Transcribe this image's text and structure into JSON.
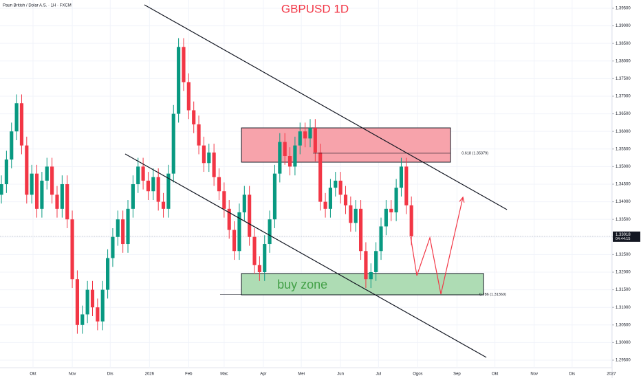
{
  "chart_data": {
    "type": "candlestick",
    "header": "Paun British / Dolar A.S. · 1H · FXCM",
    "title": "GBPUSD 1D",
    "title_color": "#f23645",
    "up_color": "#089981",
    "down_color": "#f23645",
    "grid": true,
    "xlim": [
      3.9,
      487.6
    ],
    "ylim": [
      1.29285,
      1.39734
    ],
    "xticks": [
      {
        "value": 30,
        "label": "Okt"
      },
      {
        "value": 61,
        "label": "Nov"
      },
      {
        "value": 91,
        "label": "Dis"
      },
      {
        "value": 122,
        "label": "2026"
      },
      {
        "value": 153,
        "label": "Feb"
      },
      {
        "value": 181,
        "label": "Mac"
      },
      {
        "value": 212,
        "label": "Apr"
      },
      {
        "value": 242,
        "label": "Mei"
      },
      {
        "value": 273,
        "label": "Jun"
      },
      {
        "value": 303,
        "label": "Jul"
      },
      {
        "value": 334,
        "label": "Ogos"
      },
      {
        "value": 365,
        "label": "Sep"
      },
      {
        "value": 395,
        "label": "Okt"
      },
      {
        "value": 426,
        "label": "Nov"
      },
      {
        "value": 456,
        "label": "Dis"
      },
      {
        "value": 487,
        "label": "2027"
      }
    ],
    "yticks": [
      {
        "value": 1.295,
        "label": "1.29500"
      },
      {
        "value": 1.3,
        "label": "1.30000"
      },
      {
        "value": 1.305,
        "label": "1.30500"
      },
      {
        "value": 1.31,
        "label": "1.31000"
      },
      {
        "value": 1.315,
        "label": "1.31500"
      },
      {
        "value": 1.32,
        "label": "1.32000"
      },
      {
        "value": 1.325,
        "label": "1.32500"
      },
      {
        "value": 1.33,
        "label": "1.33000"
      },
      {
        "value": 1.335,
        "label": "1.33500"
      },
      {
        "value": 1.34,
        "label": "1.34000"
      },
      {
        "value": 1.345,
        "label": "1.34500"
      },
      {
        "value": 1.35,
        "label": "1.35000"
      },
      {
        "value": 1.355,
        "label": "1.35500"
      },
      {
        "value": 1.36,
        "label": "1.36000"
      },
      {
        "value": 1.365,
        "label": "1.36500"
      },
      {
        "value": 1.37,
        "label": "1.37000"
      },
      {
        "value": 1.375,
        "label": "1.37500"
      },
      {
        "value": 1.38,
        "label": "1.38000"
      },
      {
        "value": 1.385,
        "label": "1.38500"
      },
      {
        "value": 1.39,
        "label": "1.39000"
      },
      {
        "value": 1.395,
        "label": "1.39500"
      }
    ],
    "x": [
      5,
      9,
      13,
      17,
      21,
      25,
      29,
      33,
      37,
      41,
      45,
      49,
      53,
      57,
      61,
      65,
      69,
      73,
      77,
      81,
      85,
      89,
      93,
      97,
      101,
      105,
      109,
      113,
      117,
      121,
      125,
      129,
      133,
      137,
      141,
      145,
      149,
      153,
      157,
      161,
      165,
      169,
      173,
      177,
      181,
      185,
      189,
      193,
      197,
      201,
      205,
      209,
      213,
      217,
      221,
      225,
      229,
      233,
      237,
      241,
      245,
      249,
      253,
      257,
      261,
      265,
      269,
      273,
      277,
      281,
      285,
      289,
      293,
      297,
      301,
      305,
      309,
      313,
      317,
      321,
      325,
      329
    ],
    "open": [
      1.342,
      1.345,
      1.352,
      1.36,
      1.368,
      1.356,
      1.342,
      1.348,
      1.338,
      1.346,
      1.35,
      1.342,
      1.338,
      1.345,
      1.335,
      1.318,
      1.305,
      1.308,
      1.315,
      1.31,
      1.306,
      1.315,
      1.324,
      1.33,
      1.335,
      1.328,
      1.338,
      1.345,
      1.35,
      1.346,
      1.343,
      1.347,
      1.34,
      1.338,
      1.348,
      1.365,
      1.384,
      1.374,
      1.366,
      1.362,
      1.356,
      1.351,
      1.354,
      1.347,
      1.343,
      1.338,
      1.332,
      1.326,
      1.337,
      1.342,
      1.33,
      1.322,
      1.32,
      1.328,
      1.335,
      1.348,
      1.357,
      1.353,
      1.35,
      1.356,
      1.36,
      1.358,
      1.361,
      1.354,
      1.34,
      1.338,
      1.344,
      1.346,
      1.342,
      1.339,
      1.334,
      1.338,
      1.326,
      1.318,
      1.32,
      1.326,
      1.333,
      1.338,
      1.337,
      1.344,
      1.35,
      1.339
    ],
    "high": [
      1.3475,
      1.3545,
      1.3625,
      1.3705,
      1.3705,
      1.3585,
      1.3505,
      1.3505,
      1.3485,
      1.3525,
      1.3525,
      1.3445,
      1.3475,
      1.3475,
      1.3375,
      1.3205,
      1.3105,
      1.3175,
      1.3175,
      1.3125,
      1.3175,
      1.3265,
      1.3325,
      1.3375,
      1.3375,
      1.3405,
      1.3475,
      1.3525,
      1.3525,
      1.3485,
      1.3495,
      1.3495,
      1.3425,
      1.3505,
      1.3675,
      1.3865,
      1.3865,
      1.3765,
      1.3685,
      1.3645,
      1.3585,
      1.3565,
      1.3565,
      1.3495,
      1.3455,
      1.3405,
      1.3345,
      1.3395,
      1.3445,
      1.3445,
      1.3325,
      1.3245,
      1.3305,
      1.3375,
      1.3505,
      1.3595,
      1.3595,
      1.3555,
      1.3585,
      1.3625,
      1.3625,
      1.3635,
      1.3635,
      1.3565,
      1.3425,
      1.3465,
      1.3485,
      1.3485,
      1.3445,
      1.3415,
      1.3405,
      1.3405,
      1.3285,
      1.3225,
      1.3285,
      1.3355,
      1.3405,
      1.3405,
      1.3465,
      1.3525,
      1.3525,
      1.3415
    ],
    "low": [
      1.3395,
      1.3425,
      1.3495,
      1.3575,
      1.3535,
      1.3395,
      1.3395,
      1.3355,
      1.3355,
      1.3435,
      1.3395,
      1.3355,
      1.3355,
      1.3325,
      1.3155,
      1.3025,
      1.3025,
      1.3055,
      1.3075,
      1.3035,
      1.3035,
      1.3125,
      1.3215,
      1.3275,
      1.3255,
      1.3255,
      1.3355,
      1.3425,
      1.3435,
      1.3405,
      1.3405,
      1.3375,
      1.3355,
      1.3355,
      1.3455,
      1.3625,
      1.3715,
      1.3635,
      1.3595,
      1.3535,
      1.3485,
      1.3485,
      1.3445,
      1.3405,
      1.3355,
      1.3295,
      1.3235,
      1.3235,
      1.3345,
      1.3275,
      1.3195,
      1.3175,
      1.3175,
      1.3255,
      1.3325,
      1.3455,
      1.3505,
      1.3475,
      1.3475,
      1.3535,
      1.3555,
      1.3555,
      1.3515,
      1.3375,
      1.3355,
      1.3355,
      1.3415,
      1.3395,
      1.3365,
      1.3315,
      1.3315,
      1.3235,
      1.3155,
      1.3155,
      1.3175,
      1.3235,
      1.3305,
      1.3345,
      1.3345,
      1.3415,
      1.3365,
      1.3277
    ],
    "close": [
      1.345,
      1.352,
      1.36,
      1.368,
      1.356,
      1.342,
      1.348,
      1.338,
      1.346,
      1.35,
      1.342,
      1.338,
      1.345,
      1.335,
      1.318,
      1.305,
      1.308,
      1.315,
      1.31,
      1.306,
      1.315,
      1.324,
      1.33,
      1.335,
      1.328,
      1.338,
      1.345,
      1.35,
      1.346,
      1.343,
      1.347,
      1.34,
      1.338,
      1.348,
      1.365,
      1.384,
      1.374,
      1.366,
      1.362,
      1.356,
      1.351,
      1.354,
      1.347,
      1.343,
      1.338,
      1.332,
      1.326,
      1.337,
      1.342,
      1.33,
      1.322,
      1.32,
      1.328,
      1.335,
      1.348,
      1.357,
      1.353,
      1.35,
      1.356,
      1.36,
      1.358,
      1.361,
      1.354,
      1.34,
      1.338,
      1.344,
      1.346,
      1.342,
      1.339,
      1.334,
      1.338,
      1.326,
      1.318,
      1.32,
      1.326,
      1.333,
      1.338,
      1.337,
      1.344,
      1.35,
      1.339,
      1.33018
    ],
    "last_price": {
      "value": 1.33018,
      "label": "1.33018"
    },
    "countdown": "04:44:15",
    "annotations": {
      "sell_zone": {
        "x": [
          194.7,
          359.9
        ],
        "y": [
          1.35125,
          1.361
        ],
        "color": "#f7a3ab"
      },
      "buy_zone": {
        "x": [
          194.7,
          386.0
        ],
        "y": [
          1.31355,
          1.31961
        ],
        "color": "#aedcb4",
        "label": "buy zone",
        "label_color": "#43a047"
      },
      "trend_lines": [
        {
          "x": [
            118.0,
            404.5
          ],
          "y": [
            1.39598,
            1.33777
          ]
        },
        {
          "x": [
            102.8,
            388.2
          ],
          "y": [
            1.35359,
            1.29578
          ]
        }
      ],
      "fib_levels": [
        {
          "x": [
            251.2,
            360.0
          ],
          "value": 1.35379,
          "label": "0.618 (1.35379)"
        },
        {
          "x": [
            177.8,
            384.3
          ],
          "value": 1.3136,
          "label": "0.786 (1.31360)"
        }
      ],
      "projection": {
        "x": [
          328.4,
          333.3,
          343.6,
          352.3,
          369.7
        ],
        "y": [
          1.32996,
          1.31902,
          1.32977,
          1.31375,
          1.34129
        ],
        "color": "#f23645"
      }
    }
  }
}
